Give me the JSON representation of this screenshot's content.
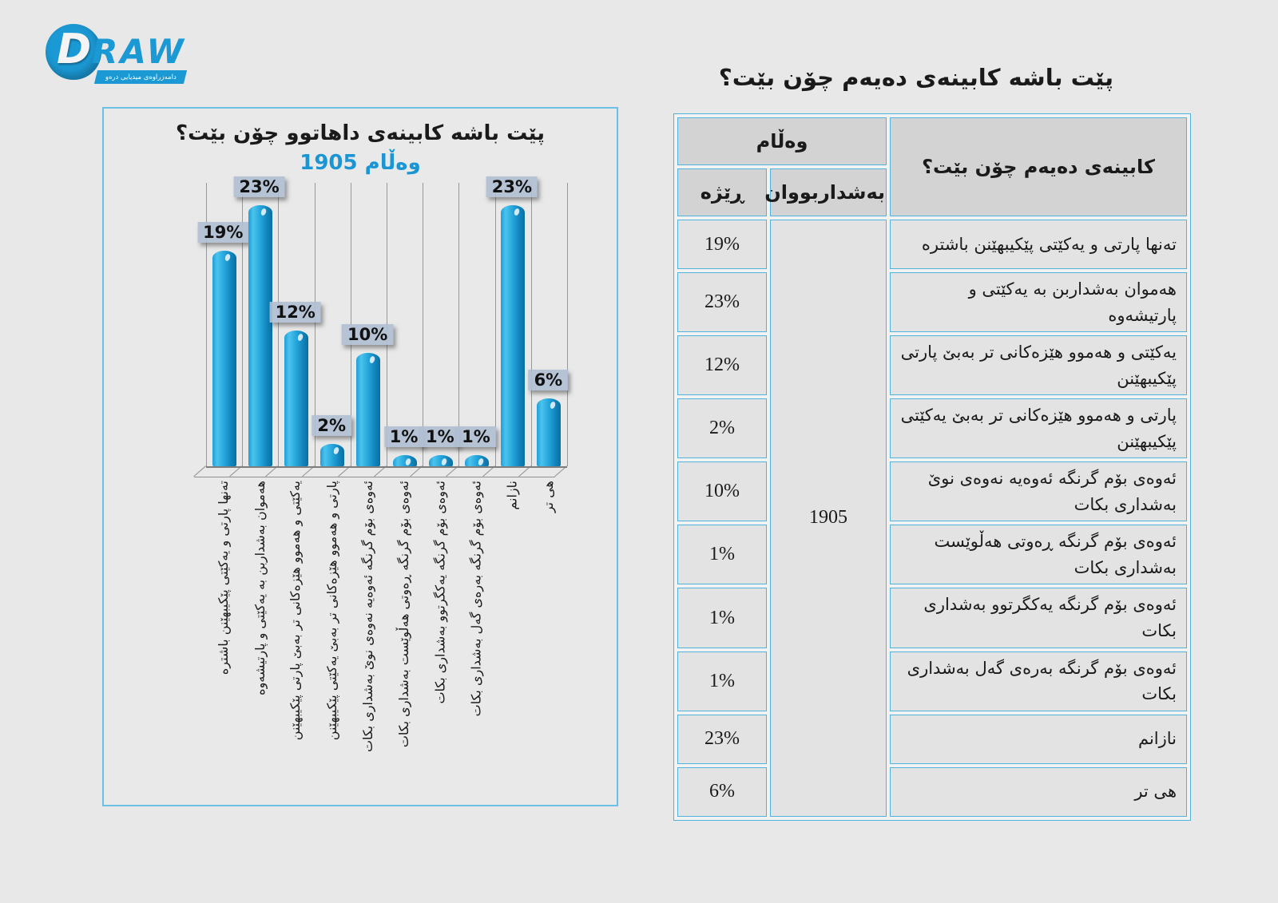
{
  "logo": {
    "d": "D",
    "raw": "RAW",
    "tagline": "دامەزراوەی میدیایی درەو"
  },
  "page_title": "پێت باشە کابینەی دەیەم چۆن بێت؟",
  "chart_data": {
    "type": "bar",
    "title": "پێت باشە کابینەی داهاتوو چۆن بێت؟",
    "subtitle": "1905 وەڵام",
    "categories": [
      "تەنها پارتی و یەکێتی پێکیبهێنن باشترە",
      "هەموان بەشداربن بە یەکێتی و پارتیشەوە",
      "یەکێتی و هەموو هێزەکانی تر بەبێ پارتی پێکیبهێنن",
      "پارتی و هەموو هێزەکانی تر بەبێ یەکێتی پێکیبهێنن",
      "ئەوەی بۆم گرنگە ئەوەیە نەوەی نوێ بەشداری بکات",
      "ئەوەی بۆم گرنگە ڕەوتی هەڵوێست بەشداری بکات",
      "ئەوەی بۆم گرنگە یەکگرتوو بەشداری بکات",
      "ئەوەی بۆم گرنگە بەرەی گەل بەشداری بکات",
      "نازانم",
      "هی تر"
    ],
    "values": [
      19,
      23,
      12,
      2,
      10,
      1,
      1,
      1,
      23,
      6
    ],
    "unit": "%",
    "data_labels": [
      "19%",
      "23%",
      "12%",
      "2%",
      "10%",
      "1%",
      "1%",
      "1%",
      "23%",
      "6%"
    ],
    "xlabel": "",
    "ylabel": "",
    "ylim": [
      0,
      25
    ],
    "grid": "vertical-category-lines",
    "legend": "none",
    "style": "3d-cylinder",
    "bar_color": "#1a9fd8",
    "label_box_color": "#b0bfd3"
  },
  "table": {
    "header": {
      "answer_group": "وەڵام",
      "rate": "ڕێژە",
      "participants": "بەشداربووان",
      "question": "کابینەی دەیەم چۆن بێت؟"
    },
    "participants_total": "1905",
    "rows": [
      {
        "rate": "19%",
        "answer": "تەنها پارتی و یەکێتی پێکیبهێنن باشترە"
      },
      {
        "rate": "23%",
        "answer": "هەموان بەشداربن بە یەکێتی و پارتیشەوە"
      },
      {
        "rate": "12%",
        "answer": "یەکێتی و هەموو هێزەکانی تر بەبێ پارتی پێکیبهێنن"
      },
      {
        "rate": "2%",
        "answer": "پارتی و هەموو هێزەکانی تر بەبێ یەکێتی پێکیبهێنن"
      },
      {
        "rate": "10%",
        "answer": "ئەوەی بۆم گرنگە ئەوەیە نەوەی نوێ بەشداری بکات"
      },
      {
        "rate": "1%",
        "answer": "ئەوەی بۆم گرنگە ڕەوتی هەڵوێست بەشداری بکات"
      },
      {
        "rate": "1%",
        "answer": "ئەوەی بۆم گرنگە یەکگرتوو بەشداری بکات"
      },
      {
        "rate": "1%",
        "answer": "ئەوەی بۆم گرنگە بەرەی گەل بەشداری بکات"
      },
      {
        "rate": "23%",
        "answer": "نازانم"
      },
      {
        "rate": "6%",
        "answer": "هی تر"
      }
    ]
  }
}
